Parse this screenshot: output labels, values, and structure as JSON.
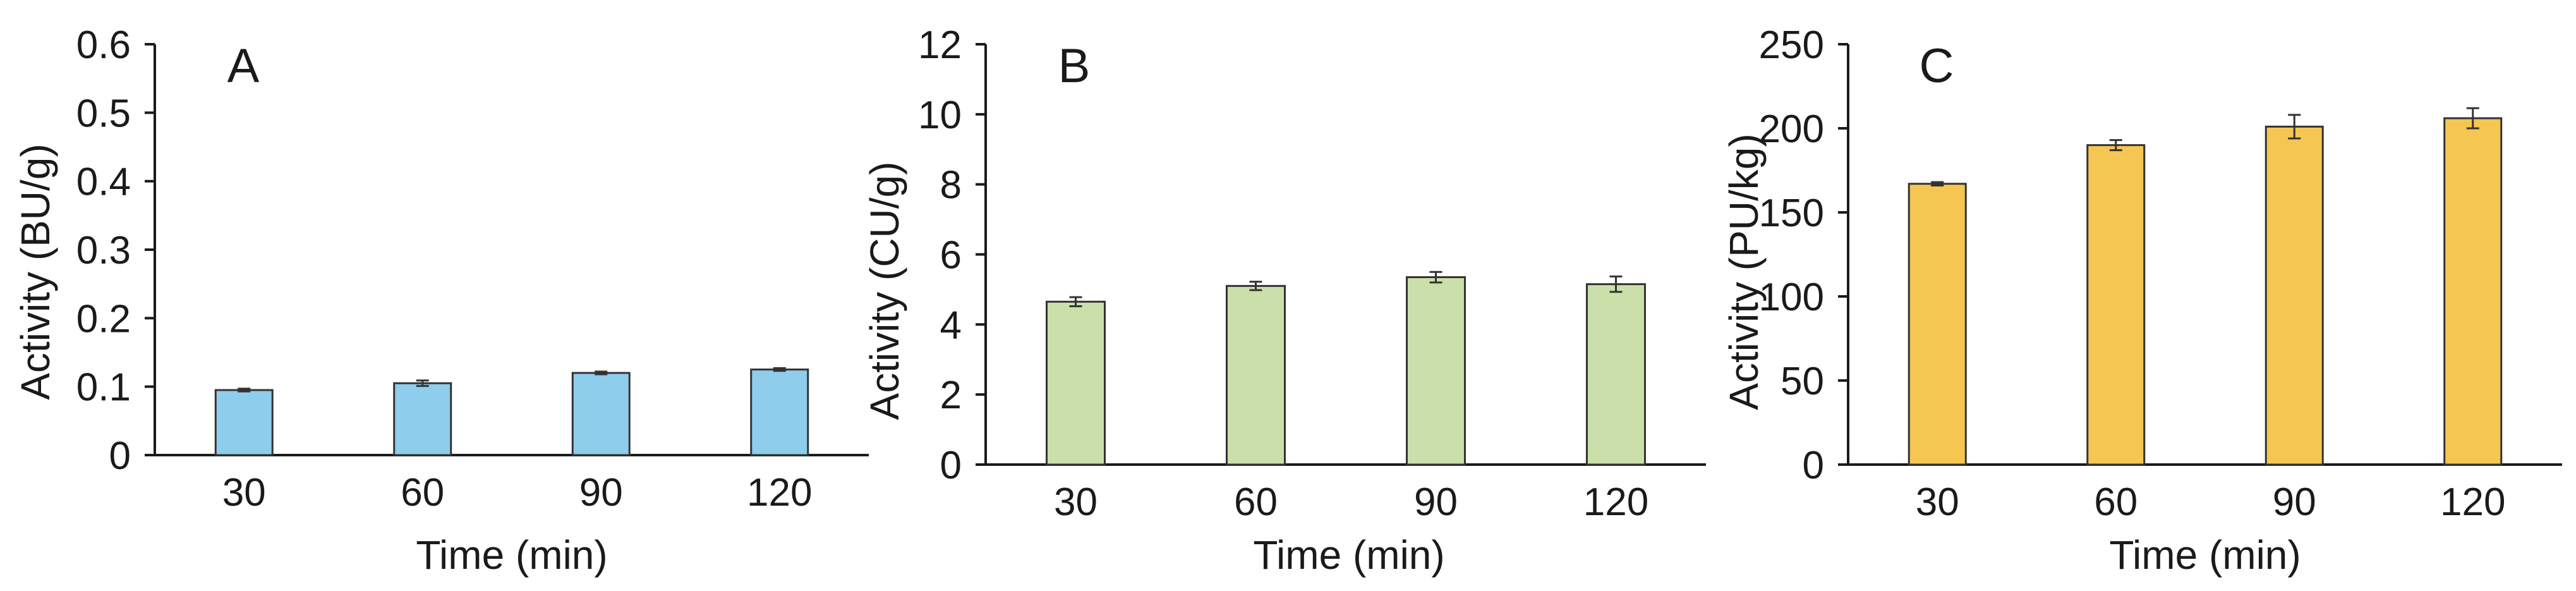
{
  "chart_data": [
    {
      "type": "bar",
      "panel_label": "A",
      "categories": [
        "30",
        "60",
        "90",
        "120"
      ],
      "values": [
        0.095,
        0.105,
        0.12,
        0.125
      ],
      "errors": [
        0.002,
        0.004,
        0.002,
        0.002
      ],
      "xlabel": "Time (min)",
      "ylabel": "Activity (BU/g)",
      "ylim": [
        0,
        0.6
      ],
      "yticks": [
        "0",
        "0.1",
        "0.2",
        "0.3",
        "0.4",
        "0.5",
        "0.6"
      ],
      "color": "#8ECDEC",
      "grid": false
    },
    {
      "type": "bar",
      "panel_label": "B",
      "categories": [
        "30",
        "60",
        "90",
        "120"
      ],
      "values": [
        4.65,
        5.1,
        5.35,
        5.15
      ],
      "errors": [
        0.13,
        0.12,
        0.15,
        0.22
      ],
      "xlabel": "Time (min)",
      "ylabel": "Activity (CU/g)",
      "ylim": [
        0,
        12
      ],
      "yticks": [
        "0",
        "2",
        "4",
        "6",
        "8",
        "10",
        "12"
      ],
      "color": "#CBDFAA",
      "grid": false
    },
    {
      "type": "bar",
      "panel_label": "C",
      "categories": [
        "30",
        "60",
        "90",
        "120"
      ],
      "values": [
        167,
        190,
        201,
        206
      ],
      "errors": [
        1,
        3,
        7,
        6
      ],
      "xlabel": "Time (min)",
      "ylabel": "Activity (PU/kg)",
      "ylim": [
        0,
        250
      ],
      "yticks": [
        "0",
        "50",
        "100",
        "150",
        "200",
        "250"
      ],
      "color": "#F5C651",
      "grid": false
    }
  ]
}
